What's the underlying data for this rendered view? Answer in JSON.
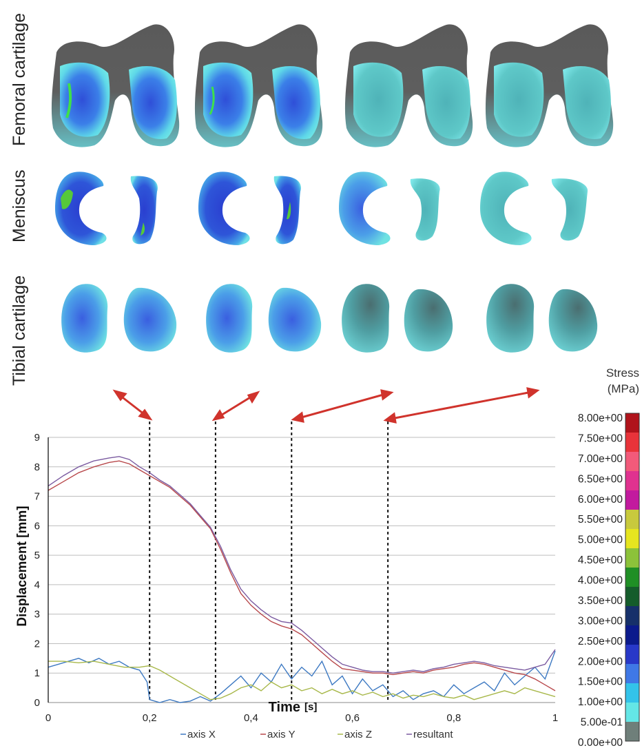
{
  "row_labels": [
    "Femoral cartilage",
    "Meniscus",
    "Tibial cartilage"
  ],
  "colorbar": {
    "title_line1": "Stress",
    "title_line2": "(MPa)",
    "labels": [
      "8.00e+00",
      "7.50e+00",
      "7.00e+00",
      "6.50e+00",
      "6.00e+00",
      "5.50e+00",
      "5.00e+00",
      "4.50e+00",
      "4.00e+00",
      "3.50e+00",
      "3.00e+00",
      "2.50e+00",
      "2.00e+00",
      "1.50e+00",
      "1.00e+00",
      "5.00e-01",
      "0.00e+00"
    ],
    "colors": [
      "#b0131b",
      "#e8333a",
      "#f25a7a",
      "#e0328f",
      "#c21a9e",
      "#c8c93d",
      "#e6e51f",
      "#8cc23a",
      "#1f8f25",
      "#145c2b",
      "#16306a",
      "#0b1a8c",
      "#2838c8",
      "#3f78e6",
      "#33c3ea",
      "#64e6e6",
      "#6f7f7a"
    ]
  },
  "chart_data": {
    "type": "line",
    "xlabel": "Time",
    "xlabel_unit": "[s]",
    "ylabel": "Displacement  [mm]",
    "xlim": [
      0,
      1
    ],
    "ylim": [
      0,
      9
    ],
    "x_ticks": [
      "0",
      "0,2",
      "0,4",
      "0,6",
      "0,8",
      "1"
    ],
    "y_ticks": [
      "0",
      "1",
      "2",
      "3",
      "4",
      "5",
      "6",
      "7",
      "8",
      "9"
    ],
    "grid": true,
    "legend_position": "bottom",
    "markers_x": [
      0.2,
      0.33,
      0.48,
      0.67
    ],
    "series": [
      {
        "name": "axis X",
        "color": "#3d79c2",
        "x": [
          0,
          0.02,
          0.04,
          0.06,
          0.08,
          0.1,
          0.12,
          0.14,
          0.16,
          0.18,
          0.195,
          0.2,
          0.21,
          0.22,
          0.24,
          0.26,
          0.28,
          0.3,
          0.32,
          0.34,
          0.36,
          0.38,
          0.4,
          0.42,
          0.44,
          0.46,
          0.48,
          0.5,
          0.52,
          0.54,
          0.56,
          0.58,
          0.6,
          0.62,
          0.64,
          0.66,
          0.68,
          0.7,
          0.72,
          0.74,
          0.76,
          0.78,
          0.8,
          0.82,
          0.84,
          0.86,
          0.88,
          0.9,
          0.92,
          0.94,
          0.96,
          0.98,
          1.0
        ],
        "y": [
          1.2,
          1.3,
          1.4,
          1.5,
          1.35,
          1.5,
          1.3,
          1.4,
          1.2,
          1.1,
          0.7,
          0.1,
          0.05,
          0,
          0.1,
          0,
          0.05,
          0.2,
          0.05,
          0.3,
          0.6,
          0.9,
          0.5,
          1.0,
          0.7,
          1.3,
          0.8,
          1.2,
          0.9,
          1.4,
          0.6,
          0.9,
          0.3,
          0.8,
          0.4,
          0.6,
          0.2,
          0.4,
          0.1,
          0.3,
          0.4,
          0.2,
          0.6,
          0.3,
          0.5,
          0.7,
          0.4,
          1.0,
          0.6,
          0.9,
          1.2,
          0.8,
          1.75
        ]
      },
      {
        "name": "axis Y",
        "color": "#b8484b",
        "x": [
          0,
          0.03,
          0.06,
          0.09,
          0.12,
          0.14,
          0.16,
          0.18,
          0.2,
          0.22,
          0.24,
          0.26,
          0.28,
          0.3,
          0.32,
          0.34,
          0.36,
          0.38,
          0.4,
          0.42,
          0.44,
          0.46,
          0.48,
          0.5,
          0.52,
          0.54,
          0.56,
          0.58,
          0.6,
          0.62,
          0.64,
          0.66,
          0.68,
          0.7,
          0.72,
          0.74,
          0.76,
          0.78,
          0.8,
          0.82,
          0.84,
          0.86,
          0.88,
          0.9,
          0.92,
          0.94,
          0.96,
          0.98,
          1.0
        ],
        "y": [
          7.2,
          7.5,
          7.8,
          8.0,
          8.15,
          8.2,
          8.1,
          7.9,
          7.7,
          7.5,
          7.3,
          7.0,
          6.7,
          6.3,
          5.9,
          5.2,
          4.4,
          3.7,
          3.3,
          3.0,
          2.75,
          2.6,
          2.5,
          2.3,
          2.0,
          1.7,
          1.4,
          1.15,
          1.1,
          1.05,
          1.0,
          1.0,
          0.95,
          1.0,
          1.05,
          1.0,
          1.1,
          1.15,
          1.2,
          1.3,
          1.35,
          1.3,
          1.2,
          1.1,
          1.0,
          0.95,
          0.8,
          0.6,
          0.4
        ]
      },
      {
        "name": "axis Z",
        "color": "#a8b84a",
        "x": [
          0,
          0.03,
          0.06,
          0.09,
          0.12,
          0.15,
          0.18,
          0.2,
          0.22,
          0.24,
          0.26,
          0.28,
          0.3,
          0.32,
          0.34,
          0.36,
          0.38,
          0.4,
          0.42,
          0.44,
          0.46,
          0.48,
          0.5,
          0.52,
          0.54,
          0.56,
          0.58,
          0.6,
          0.62,
          0.64,
          0.66,
          0.68,
          0.7,
          0.72,
          0.74,
          0.76,
          0.78,
          0.8,
          0.82,
          0.84,
          0.86,
          0.88,
          0.9,
          0.92,
          0.94,
          0.96,
          0.98,
          1.0
        ],
        "y": [
          1.4,
          1.4,
          1.35,
          1.4,
          1.3,
          1.2,
          1.2,
          1.25,
          1.1,
          0.9,
          0.7,
          0.5,
          0.3,
          0.1,
          0.15,
          0.3,
          0.5,
          0.6,
          0.4,
          0.7,
          0.5,
          0.6,
          0.4,
          0.5,
          0.3,
          0.45,
          0.3,
          0.4,
          0.25,
          0.35,
          0.2,
          0.3,
          0.15,
          0.25,
          0.2,
          0.3,
          0.2,
          0.15,
          0.25,
          0.1,
          0.2,
          0.3,
          0.4,
          0.3,
          0.5,
          0.4,
          0.3,
          0.2
        ]
      },
      {
        "name": "resultant",
        "color": "#7a5aa0",
        "x": [
          0,
          0.03,
          0.06,
          0.09,
          0.12,
          0.14,
          0.16,
          0.18,
          0.2,
          0.22,
          0.24,
          0.26,
          0.28,
          0.3,
          0.32,
          0.34,
          0.36,
          0.38,
          0.4,
          0.42,
          0.44,
          0.46,
          0.48,
          0.5,
          0.52,
          0.54,
          0.56,
          0.58,
          0.6,
          0.62,
          0.64,
          0.66,
          0.68,
          0.7,
          0.72,
          0.74,
          0.76,
          0.78,
          0.8,
          0.82,
          0.84,
          0.86,
          0.88,
          0.9,
          0.92,
          0.94,
          0.96,
          0.98,
          1.0
        ],
        "y": [
          7.35,
          7.7,
          8.0,
          8.2,
          8.3,
          8.35,
          8.25,
          8.0,
          7.8,
          7.55,
          7.35,
          7.05,
          6.75,
          6.35,
          5.95,
          5.3,
          4.5,
          3.85,
          3.45,
          3.15,
          2.9,
          2.75,
          2.7,
          2.45,
          2.15,
          1.85,
          1.55,
          1.3,
          1.2,
          1.1,
          1.05,
          1.05,
          1.0,
          1.05,
          1.1,
          1.05,
          1.15,
          1.2,
          1.3,
          1.35,
          1.4,
          1.35,
          1.25,
          1.2,
          1.15,
          1.1,
          1.2,
          1.3,
          1.8
        ]
      }
    ]
  }
}
